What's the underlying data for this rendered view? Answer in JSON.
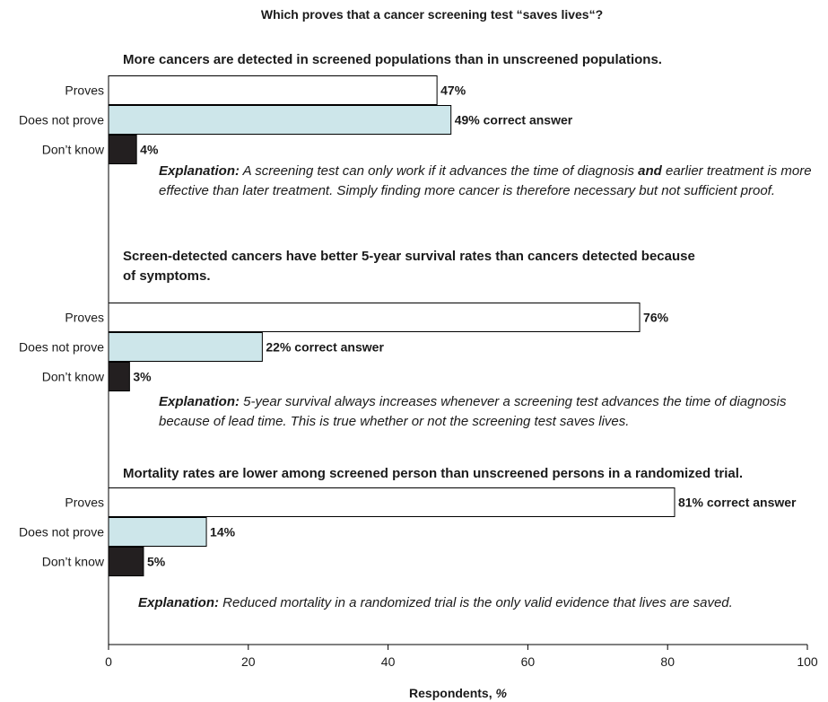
{
  "chart_data": {
    "type": "bar",
    "orientation": "horizontal",
    "title": "Which proves that a cancer screening test “saves lives“?",
    "xlabel_main": "Respondents, ",
    "xlabel_unit": "%",
    "xlim": [
      0,
      100
    ],
    "xticks": [
      0,
      20,
      40,
      60,
      80,
      100
    ],
    "categories": [
      "Proves",
      "Does not prove",
      "Don’t know"
    ],
    "colors": {
      "Proves": "#ffffff",
      "Does not prove": "#cde6ea",
      "Don’t know": "#231f20"
    },
    "grid": false,
    "questions": [
      {
        "title_lines": [
          "More cancers are detected in screened populations than in unscreened populations."
        ],
        "values": [
          47,
          49,
          4
        ],
        "labels": [
          "47%",
          "49% correct answer",
          "4%"
        ],
        "explanation_lead": "Explanation:",
        "explanation_parts": [
          " A screening test can only work if it advances the time of diagnosis ",
          "and",
          " earlier treatment is more effective than later treatment. Simply finding more cancer is therefore necessary but not sufficient proof."
        ]
      },
      {
        "title_lines": [
          "Screen-detected cancers have better 5-year survival rates than cancers detected because",
          "of symptoms."
        ],
        "values": [
          76,
          22,
          3
        ],
        "labels": [
          "76%",
          "22% correct answer",
          "3%"
        ],
        "explanation_lead": "Explanation:",
        "explanation_parts": [
          " 5-year survival always increases whenever a screening test advances the time of diagnosis because of lead time. This is true whether or not the screening test saves lives."
        ]
      },
      {
        "title_lines": [
          "Mortality rates are lower among screened person than unscreened persons in a randomized trial."
        ],
        "values": [
          81,
          14,
          5
        ],
        "labels": [
          "81% correct answer",
          "14%",
          "5%"
        ],
        "explanation_lead": "Explanation:",
        "explanation_parts": [
          " Reduced mortality in a randomized trial is the only valid evidence that lives are saved."
        ]
      }
    ]
  }
}
